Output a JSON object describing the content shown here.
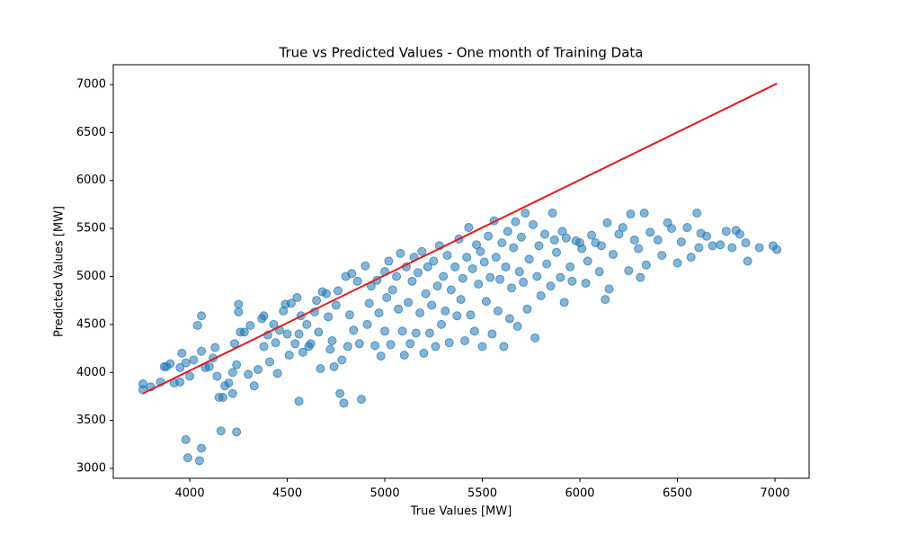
{
  "chart_data": {
    "type": "scatter",
    "title": "True vs Predicted Values - One month of Training Data",
    "x_label": "True Values [MW]",
    "y_label": "Predicted Values [MW]",
    "xlim": [
      3608,
      7175
    ],
    "ylim": [
      2897,
      7206
    ],
    "xticks": [
      4000,
      4500,
      5000,
      5500,
      6000,
      6500,
      7000
    ],
    "yticks": [
      3000,
      3500,
      4000,
      4500,
      5000,
      5500,
      6000,
      6500,
      7000
    ],
    "grid": false,
    "series": [
      {
        "type": "scatter",
        "color": "#1f77b4",
        "x": [
          3760,
          3760,
          3800,
          3850,
          3870,
          3900,
          3880,
          3920,
          3950,
          3950,
          3960,
          3980,
          4000,
          4020,
          4040,
          4060,
          4060,
          4080,
          4100,
          4120,
          4130,
          4140,
          4150,
          4170,
          4180,
          4200,
          4220,
          4220,
          4230,
          4240,
          4250,
          4250,
          4260,
          4280,
          4300,
          4310,
          4330,
          4350,
          4370,
          4380,
          4380,
          4400,
          4410,
          4430,
          4440,
          4450,
          4460,
          4480,
          4490,
          4500,
          4510,
          4520,
          4540,
          4550,
          4560,
          4570,
          4580,
          4600,
          4610,
          4620,
          4640,
          4650,
          4660,
          4670,
          4680,
          4700,
          4710,
          4720,
          4730,
          4740,
          4750,
          4760,
          4770,
          4780,
          4790,
          4800,
          4810,
          4820,
          4830,
          4840,
          4860,
          4870,
          4880,
          4900,
          4910,
          4920,
          4930,
          4950,
          4960,
          4970,
          4980,
          5000,
          5000,
          5010,
          5020,
          5030,
          5040,
          5060,
          5070,
          5080,
          5090,
          5100,
          5110,
          5120,
          5130,
          5140,
          5150,
          5160,
          5170,
          5180,
          5190,
          5200,
          5210,
          5220,
          5230,
          5240,
          5250,
          5260,
          5270,
          5280,
          5290,
          5300,
          5310,
          5320,
          5330,
          5340,
          5360,
          5370,
          5380,
          5390,
          5400,
          5410,
          5420,
          5430,
          5440,
          5450,
          5460,
          5470,
          5480,
          5490,
          5500,
          5510,
          5520,
          5530,
          5540,
          5550,
          5560,
          5570,
          5580,
          5590,
          5600,
          5610,
          5620,
          5630,
          5640,
          5650,
          5660,
          5670,
          5680,
          5690,
          5700,
          5710,
          5720,
          5730,
          5740,
          5760,
          5770,
          5780,
          5790,
          5800,
          5820,
          5830,
          5850,
          5860,
          5870,
          5880,
          5900,
          5910,
          5920,
          5930,
          5950,
          5960,
          5980,
          6000,
          6010,
          6030,
          6040,
          6060,
          6080,
          6100,
          6110,
          6130,
          6140,
          6150,
          6170,
          6200,
          6220,
          6250,
          6260,
          6280,
          6300,
          6310,
          6330,
          6340,
          6360,
          6400,
          6420,
          6450,
          6470,
          6500,
          6520,
          6550,
          6570,
          6600,
          6610,
          6620,
          6650,
          6680,
          6720,
          6750,
          6780,
          6800,
          6820,
          6850,
          6860,
          6920,
          6990,
          7010,
          3980,
          3990,
          4050,
          4060,
          4160,
          4240,
          4560
        ],
        "values": [
          3880,
          3820,
          3850,
          3900,
          4060,
          4090,
          4060,
          3890,
          3900,
          4050,
          4200,
          4100,
          3960,
          4130,
          4490,
          4590,
          4220,
          4050,
          4060,
          4150,
          4260,
          3960,
          3740,
          3740,
          3860,
          3890,
          4000,
          3780,
          4300,
          4080,
          4710,
          4630,
          4420,
          4420,
          3980,
          4490,
          3860,
          4030,
          4560,
          4590,
          4270,
          4390,
          4110,
          4500,
          4310,
          3990,
          4440,
          4640,
          4710,
          4400,
          4180,
          4720,
          4300,
          4780,
          4400,
          4590,
          4210,
          4500,
          4270,
          4300,
          4630,
          4750,
          4420,
          4040,
          4840,
          4820,
          4580,
          4240,
          4330,
          4060,
          4700,
          4850,
          3780,
          4130,
          3680,
          5000,
          4270,
          4600,
          5030,
          4440,
          4950,
          4300,
          3720,
          5110,
          4500,
          4720,
          4900,
          4280,
          4960,
          4620,
          4170,
          4430,
          5050,
          4780,
          5160,
          4290,
          4860,
          5000,
          4660,
          5240,
          4430,
          4180,
          5100,
          4730,
          4300,
          4950,
          5200,
          4410,
          5040,
          4620,
          5260,
          4200,
          4820,
          5100,
          4410,
          4700,
          5160,
          4270,
          4900,
          5320,
          4500,
          5000,
          4640,
          5220,
          4310,
          4860,
          5100,
          4590,
          5390,
          4760,
          4980,
          4330,
          5200,
          5510,
          4600,
          5080,
          4430,
          5330,
          4920,
          5260,
          4270,
          5150,
          4740,
          5420,
          4990,
          4400,
          5580,
          5200,
          4640,
          4970,
          5350,
          4270,
          5100,
          5470,
          4560,
          4880,
          5300,
          5570,
          4480,
          5050,
          5410,
          4940,
          5660,
          4660,
          5180,
          5540,
          4360,
          5000,
          5320,
          4800,
          5440,
          5130,
          4900,
          5660,
          5380,
          5250,
          4990,
          5470,
          4730,
          5400,
          5100,
          4950,
          5370,
          5350,
          5290,
          4930,
          5160,
          5430,
          5350,
          5050,
          5320,
          4760,
          5560,
          4870,
          5230,
          5440,
          5510,
          5060,
          5650,
          5380,
          5290,
          4990,
          5660,
          5120,
          5460,
          5380,
          5220,
          5560,
          5500,
          5140,
          5360,
          5510,
          5200,
          5660,
          5300,
          5450,
          5420,
          5320,
          5330,
          5470,
          5300,
          5480,
          5440,
          5350,
          5160,
          5300,
          5320,
          5280,
          3300,
          3110,
          3080,
          3210,
          3390,
          3380,
          3700
        ]
      },
      {
        "type": "line",
        "color": "#e41a1c",
        "x": [
          3760,
          7010
        ],
        "values": [
          3780,
          7010
        ]
      }
    ]
  }
}
